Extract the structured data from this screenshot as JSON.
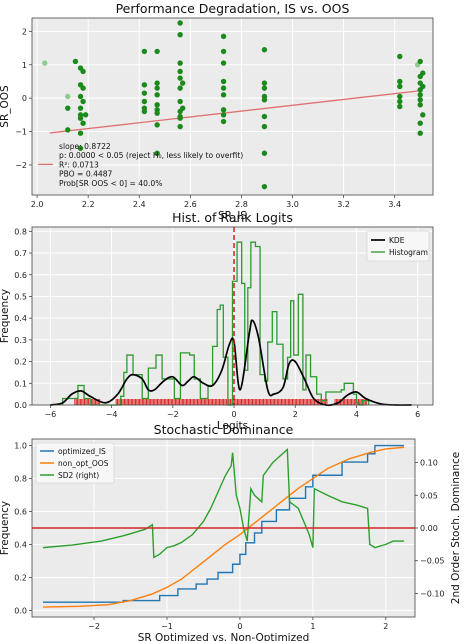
{
  "chart_data": [
    {
      "type": "scatter",
      "title": "Performance Degradation, IS vs. OOS",
      "xlabel": "SR_IS",
      "ylabel": "SR_OOS",
      "xlim": [
        1.98,
        3.55
      ],
      "ylim": [
        -2.9,
        2.4
      ],
      "xticks": [
        2.0,
        2.2,
        2.4,
        2.6,
        2.8,
        3.0,
        3.2,
        3.4
      ],
      "yticks": [
        -2,
        -1,
        0,
        1,
        2
      ],
      "grid": true,
      "colors": {
        "points": "#1a8a1a",
        "faded_points": "#7fc47f",
        "fit_line": "#e07070"
      },
      "points": [
        {
          "x": 2.03,
          "y": 1.05,
          "faded": true
        },
        {
          "x": 2.12,
          "y": 0.05,
          "faded": true
        },
        {
          "x": 2.12,
          "y": -0.3
        },
        {
          "x": 2.12,
          "y": -0.95
        },
        {
          "x": 2.15,
          "y": 1.1
        },
        {
          "x": 2.17,
          "y": 0.9
        },
        {
          "x": 2.17,
          "y": 0.4
        },
        {
          "x": 2.17,
          "y": 0.05
        },
        {
          "x": 2.17,
          "y": -0.3
        },
        {
          "x": 2.17,
          "y": -0.5
        },
        {
          "x": 2.17,
          "y": -0.6
        },
        {
          "x": 2.17,
          "y": -1.05
        },
        {
          "x": 2.17,
          "y": -1.5
        },
        {
          "x": 2.18,
          "y": 0.8
        },
        {
          "x": 2.18,
          "y": 0.3
        },
        {
          "x": 2.18,
          "y": -0.1
        },
        {
          "x": 2.18,
          "y": -0.75
        },
        {
          "x": 2.19,
          "y": -0.5
        },
        {
          "x": 2.42,
          "y": 1.4
        },
        {
          "x": 2.42,
          "y": 0.4
        },
        {
          "x": 2.42,
          "y": 0.15
        },
        {
          "x": 2.42,
          "y": -0.1
        },
        {
          "x": 2.42,
          "y": -0.3
        },
        {
          "x": 2.42,
          "y": -0.4
        },
        {
          "x": 2.47,
          "y": 1.4
        },
        {
          "x": 2.47,
          "y": 0.45
        },
        {
          "x": 2.47,
          "y": 0.3
        },
        {
          "x": 2.47,
          "y": 0.1
        },
        {
          "x": 2.47,
          "y": -0.2
        },
        {
          "x": 2.47,
          "y": -0.35
        },
        {
          "x": 2.47,
          "y": -0.45
        },
        {
          "x": 2.47,
          "y": -0.8
        },
        {
          "x": 2.47,
          "y": -1.65
        },
        {
          "x": 2.56,
          "y": 2.25
        },
        {
          "x": 2.56,
          "y": 1.9
        },
        {
          "x": 2.56,
          "y": 1.05
        },
        {
          "x": 2.56,
          "y": 0.8
        },
        {
          "x": 2.56,
          "y": 0.6
        },
        {
          "x": 2.56,
          "y": 0.3
        },
        {
          "x": 2.56,
          "y": -0.1
        },
        {
          "x": 2.56,
          "y": -0.4
        },
        {
          "x": 2.56,
          "y": -0.55
        },
        {
          "x": 2.56,
          "y": -0.6
        },
        {
          "x": 2.56,
          "y": -0.85
        },
        {
          "x": 2.57,
          "y": 0.45
        },
        {
          "x": 2.57,
          "y": -0.3
        },
        {
          "x": 2.73,
          "y": 1.85
        },
        {
          "x": 2.73,
          "y": 1.4
        },
        {
          "x": 2.73,
          "y": 1.05
        },
        {
          "x": 2.73,
          "y": 0.5
        },
        {
          "x": 2.73,
          "y": 0.3
        },
        {
          "x": 2.73,
          "y": 0.1
        },
        {
          "x": 2.73,
          "y": -0.35
        },
        {
          "x": 2.73,
          "y": -0.5
        },
        {
          "x": 2.73,
          "y": -0.7
        },
        {
          "x": 2.89,
          "y": 1.45
        },
        {
          "x": 2.89,
          "y": 0.45
        },
        {
          "x": 2.89,
          "y": 0.3
        },
        {
          "x": 2.89,
          "y": 0.05
        },
        {
          "x": 2.89,
          "y": -0.05
        },
        {
          "x": 2.89,
          "y": -0.55
        },
        {
          "x": 2.89,
          "y": -0.85
        },
        {
          "x": 2.89,
          "y": -1.65
        },
        {
          "x": 2.89,
          "y": -2.65
        },
        {
          "x": 3.42,
          "y": 1.25
        },
        {
          "x": 3.42,
          "y": 0.5
        },
        {
          "x": 3.42,
          "y": 0.35
        },
        {
          "x": 3.42,
          "y": 0.05
        },
        {
          "x": 3.42,
          "y": -0.1
        },
        {
          "x": 3.42,
          "y": -0.25
        },
        {
          "x": 3.49,
          "y": 1.0,
          "faded": true
        },
        {
          "x": 3.5,
          "y": 1.1
        },
        {
          "x": 3.5,
          "y": 0.65
        },
        {
          "x": 3.5,
          "y": 0.45
        },
        {
          "x": 3.5,
          "y": 0.25
        },
        {
          "x": 3.5,
          "y": 0.1
        },
        {
          "x": 3.5,
          "y": -0.05
        },
        {
          "x": 3.5,
          "y": -0.2
        },
        {
          "x": 3.5,
          "y": -0.75
        },
        {
          "x": 3.5,
          "y": -1.05
        },
        {
          "x": 3.51,
          "y": 0.75
        },
        {
          "x": 3.51,
          "y": 0.35
        },
        {
          "x": 3.51,
          "y": -0.5
        }
      ],
      "fit_line": {
        "slope": 0.8722,
        "intercept": -2.83
      },
      "annotation_lines": [
        "slope: 0.8722",
        "p: 0.0000  < 0.05 (reject H₀, less likely to overfit)",
        "R²: 0.0713",
        "PBO = 0.4487",
        "Prob[SR OOS < 0] = 40.0%"
      ]
    },
    {
      "type": "histogram",
      "title": "Hist. of Rank Logits",
      "xlabel": "Logits",
      "ylabel": "Frequency",
      "xlim": [
        -6.6,
        6.5
      ],
      "ylim": [
        0,
        0.82
      ],
      "xticks": [
        -6,
        -4,
        -2,
        0,
        2,
        4,
        6
      ],
      "yticks": [
        0.0,
        0.1,
        0.2,
        0.3,
        0.4,
        0.5,
        0.6,
        0.7,
        0.8
      ],
      "grid": true,
      "legend_position": "top-right",
      "legend": [
        "KDE",
        "Histogram"
      ],
      "colors": {
        "kde": "#000000",
        "histogram": "#2e9a2e",
        "rug": "#dd1111",
        "marker": "#dd1111"
      },
      "vertical_marker_x": 0,
      "histogram_bin_edges": [
        -5.6,
        -5.1,
        -4.9,
        -4.7,
        -3.7,
        -3.6,
        -3.5,
        -3.3,
        -3.0,
        -2.8,
        -2.55,
        -2.35,
        -1.95,
        -1.75,
        -1.45,
        -1.3,
        -1.1,
        -0.85,
        -0.7,
        -0.55,
        -0.45,
        -0.35,
        -0.2,
        -0.05,
        0.1,
        0.25,
        0.35,
        0.45,
        0.55,
        0.7,
        0.85,
        1.0,
        1.1,
        1.25,
        1.4,
        1.6,
        1.75,
        1.85,
        1.95,
        2.1,
        2.25,
        2.35,
        2.5,
        2.7,
        2.85,
        3.0,
        3.5,
        3.6,
        3.9,
        4.0,
        4.1,
        4.2,
        4.4
      ],
      "histogram_values": [
        0.03,
        0.09,
        0.03,
        0.0,
        0.04,
        0.15,
        0.23,
        0.14,
        0.03,
        0.17,
        0.23,
        0.12,
        0.03,
        0.24,
        0.23,
        0.12,
        0.03,
        0.09,
        0.27,
        0.44,
        0.46,
        0.22,
        0.0,
        0.57,
        0.75,
        0.56,
        0.16,
        0.54,
        0.75,
        0.73,
        0.14,
        0.11,
        0.29,
        0.43,
        0.28,
        0.12,
        0.22,
        0.48,
        0.23,
        0.51,
        0.07,
        0.23,
        0.13,
        0.05,
        0.02,
        0.06,
        0.07,
        0.1,
        0.05,
        0.01,
        0.0,
        0.02
      ],
      "kde": {
        "x": [
          -6.0,
          -5.6,
          -5.3,
          -5.0,
          -4.7,
          -4.2,
          -3.8,
          -3.5,
          -3.3,
          -3.0,
          -2.8,
          -2.6,
          -2.3,
          -2.0,
          -1.7,
          -1.5,
          -1.3,
          -1.0,
          -0.7,
          -0.4,
          -0.15,
          0.0,
          0.2,
          0.5,
          0.6,
          0.8,
          1.1,
          1.3,
          1.6,
          1.8,
          2.0,
          2.3,
          2.6,
          3.0,
          3.4,
          3.7,
          4.0,
          4.3,
          4.8,
          5.3,
          5.8
        ],
        "y": [
          0.0,
          0.01,
          0.05,
          0.065,
          0.04,
          0.01,
          0.05,
          0.12,
          0.14,
          0.12,
          0.07,
          0.07,
          0.11,
          0.13,
          0.09,
          0.11,
          0.13,
          0.1,
          0.09,
          0.16,
          0.28,
          0.29,
          0.07,
          0.33,
          0.39,
          0.31,
          0.07,
          0.05,
          0.08,
          0.19,
          0.2,
          0.12,
          0.03,
          0.0,
          0.01,
          0.045,
          0.06,
          0.03,
          0.005,
          0.0,
          0.0
        ]
      },
      "rug_ranges": [
        [
          -5.2,
          -4.35
        ],
        [
          -3.85,
          3.05
        ],
        [
          3.3,
          4.35
        ]
      ]
    },
    {
      "type": "line",
      "title": "Stochastic Dominance",
      "xlabel": "SR Optimized vs. Non-Optimized",
      "ylabel": "Frequency",
      "y2label": "2nd Order Stoch. Dominance",
      "xlim": [
        -2.85,
        2.4
      ],
      "ylim": [
        -0.04,
        1.04
      ],
      "y2lim": [
        -0.136,
        0.136
      ],
      "xticks": [
        -2,
        -1,
        0,
        1,
        2
      ],
      "yticks": [
        0.0,
        0.2,
        0.4,
        0.6,
        0.8,
        1.0
      ],
      "y2ticks": [
        -0.1,
        -0.05,
        0.0,
        0.05,
        0.1
      ],
      "grid": true,
      "legend_position": "top-left",
      "reference_line_y2": 0.0,
      "colors": {
        "optimized_IS": "#1f77b4",
        "non_opt_OOS": "#ff7f0e",
        "sd2": "#2ca02c",
        "reference": "#d62728"
      },
      "series": [
        {
          "name": "optimized_IS",
          "axis": "left",
          "x": [
            -2.7,
            -1.6,
            -1.6,
            -1.1,
            -1.1,
            -0.85,
            -0.85,
            -0.6,
            -0.6,
            -0.45,
            -0.45,
            -0.3,
            -0.3,
            -0.1,
            -0.1,
            0.0,
            0.0,
            0.08,
            0.08,
            0.2,
            0.2,
            0.3,
            0.3,
            0.5,
            0.5,
            0.68,
            0.68,
            0.9,
            0.9,
            1.0,
            1.0,
            1.4,
            1.4,
            1.75,
            1.75,
            1.85,
            1.85,
            2.25
          ],
          "y": [
            0.05,
            0.05,
            0.06,
            0.06,
            0.09,
            0.09,
            0.13,
            0.13,
            0.16,
            0.16,
            0.19,
            0.19,
            0.23,
            0.23,
            0.28,
            0.28,
            0.34,
            0.34,
            0.41,
            0.41,
            0.47,
            0.47,
            0.54,
            0.54,
            0.61,
            0.61,
            0.68,
            0.68,
            0.75,
            0.75,
            0.82,
            0.82,
            0.9,
            0.9,
            0.95,
            0.95,
            1.0,
            1.0
          ]
        },
        {
          "name": "non_opt_OOS",
          "axis": "left",
          "x": [
            -2.7,
            -2.2,
            -1.8,
            -1.5,
            -1.2,
            -1.0,
            -0.8,
            -0.6,
            -0.4,
            -0.2,
            0.0,
            0.2,
            0.4,
            0.6,
            0.8,
            1.0,
            1.2,
            1.5,
            1.8,
            2.0,
            2.25
          ],
          "y": [
            0.02,
            0.025,
            0.035,
            0.06,
            0.1,
            0.14,
            0.19,
            0.26,
            0.33,
            0.4,
            0.46,
            0.53,
            0.6,
            0.67,
            0.74,
            0.8,
            0.86,
            0.92,
            0.96,
            0.98,
            0.99
          ]
        },
        {
          "name": "SD2 (right)",
          "axis": "right",
          "x": [
            -2.7,
            -2.3,
            -1.9,
            -1.6,
            -1.3,
            -1.2,
            -1.18,
            -1.1,
            -1.0,
            -0.9,
            -0.8,
            -0.65,
            -0.5,
            -0.4,
            -0.3,
            -0.2,
            -0.12,
            -0.1,
            -0.05,
            0.0,
            0.05,
            0.1,
            0.15,
            0.2,
            0.25,
            0.3,
            0.32,
            0.45,
            0.55,
            0.65,
            0.68,
            0.8,
            0.95,
            1.0,
            1.02,
            1.2,
            1.4,
            1.6,
            1.75,
            1.78,
            1.85,
            2.0,
            2.1,
            2.25
          ],
          "y": [
            -0.03,
            -0.026,
            -0.02,
            -0.012,
            -0.002,
            0.005,
            -0.045,
            -0.04,
            -0.03,
            -0.027,
            -0.022,
            -0.01,
            0.01,
            0.03,
            0.055,
            0.08,
            0.095,
            0.115,
            0.05,
            0.03,
            0.0,
            -0.02,
            0.06,
            0.05,
            0.045,
            0.04,
            0.08,
            0.1,
            0.11,
            0.12,
            0.04,
            0.03,
            -0.01,
            -0.03,
            0.06,
            0.05,
            0.04,
            0.035,
            0.03,
            -0.025,
            -0.03,
            -0.025,
            -0.02,
            -0.02
          ]
        }
      ]
    }
  ]
}
